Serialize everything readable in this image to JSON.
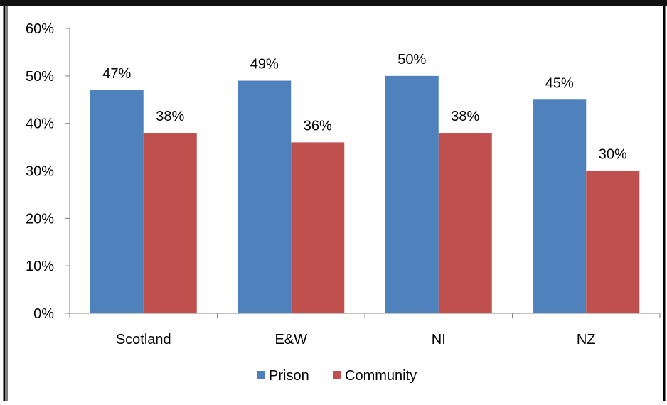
{
  "chart_data": {
    "type": "bar",
    "title": "",
    "xlabel": "",
    "ylabel": "",
    "categories": [
      "Scotland",
      "E&W",
      "NI",
      "NZ"
    ],
    "series": [
      {
        "name": "Prison",
        "color": "#4F81BD",
        "values": [
          47,
          49,
          50,
          45
        ],
        "labels": [
          "47%",
          "49%",
          "50%",
          "45%"
        ]
      },
      {
        "name": "Community",
        "color": "#C0504D",
        "values": [
          38,
          36,
          38,
          30
        ],
        "labels": [
          "38%",
          "36%",
          "38%",
          "30%"
        ]
      }
    ],
    "ylim": [
      0,
      60
    ],
    "ytick_values": [
      0,
      10,
      20,
      30,
      40,
      50,
      60
    ],
    "ytick_labels": [
      "0%",
      "10%",
      "20%",
      "30%",
      "40%",
      "50%",
      "60%"
    ],
    "grid": false,
    "legend_position": "bottom"
  }
}
